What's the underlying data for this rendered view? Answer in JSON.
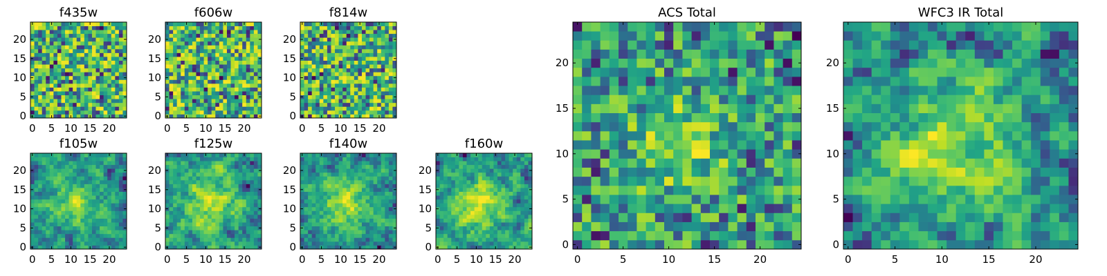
{
  "chart_data": [
    {
      "type": "heatmap",
      "title": "f435w",
      "x_ticks": [
        0,
        5,
        10,
        15,
        20
      ],
      "y_ticks": [
        0,
        5,
        10,
        15,
        20
      ],
      "xlim": [
        -0.5,
        24.5
      ],
      "ylim": [
        -0.5,
        24.5
      ],
      "grid_size": 25,
      "colormap": "viridis",
      "seed": 11,
      "texture": "fine-noise"
    },
    {
      "type": "heatmap",
      "title": "f606w",
      "x_ticks": [
        0,
        5,
        10,
        15,
        20
      ],
      "y_ticks": [
        0,
        5,
        10,
        15,
        20
      ],
      "xlim": [
        -0.5,
        24.5
      ],
      "ylim": [
        -0.5,
        24.5
      ],
      "grid_size": 25,
      "colormap": "viridis",
      "seed": 23,
      "texture": "fine-noise"
    },
    {
      "type": "heatmap",
      "title": "f814w",
      "x_ticks": [
        0,
        5,
        10,
        15,
        20
      ],
      "y_ticks": [
        0,
        5,
        10,
        15,
        20
      ],
      "xlim": [
        -0.5,
        24.5
      ],
      "ylim": [
        -0.5,
        24.5
      ],
      "grid_size": 25,
      "colormap": "viridis",
      "seed": 37,
      "texture": "fine-noise"
    },
    {
      "type": "heatmap",
      "title": "f105w",
      "x_ticks": [
        0,
        5,
        10,
        15,
        20
      ],
      "y_ticks": [
        0,
        5,
        10,
        15,
        20
      ],
      "xlim": [
        -0.5,
        24.5
      ],
      "ylim": [
        -0.5,
        24.5
      ],
      "grid_size": 25,
      "colormap": "viridis",
      "seed": 41,
      "texture": "smooth-blob"
    },
    {
      "type": "heatmap",
      "title": "f125w",
      "x_ticks": [
        0,
        5,
        10,
        15,
        20
      ],
      "y_ticks": [
        0,
        5,
        10,
        15,
        20
      ],
      "xlim": [
        -0.5,
        24.5
      ],
      "ylim": [
        -0.5,
        24.5
      ],
      "grid_size": 25,
      "colormap": "viridis",
      "seed": 53,
      "texture": "smooth-blob"
    },
    {
      "type": "heatmap",
      "title": "f140w",
      "x_ticks": [
        0,
        5,
        10,
        15,
        20
      ],
      "y_ticks": [
        0,
        5,
        10,
        15,
        20
      ],
      "xlim": [
        -0.5,
        24.5
      ],
      "ylim": [
        -0.5,
        24.5
      ],
      "grid_size": 25,
      "colormap": "viridis",
      "seed": 67,
      "texture": "smooth-blob"
    },
    {
      "type": "heatmap",
      "title": "f160w",
      "x_ticks": [
        0,
        5,
        10,
        15,
        20
      ],
      "y_ticks": [
        0,
        5,
        10,
        15,
        20
      ],
      "xlim": [
        -0.5,
        24.5
      ],
      "ylim": [
        -0.5,
        24.5
      ],
      "grid_size": 25,
      "colormap": "viridis",
      "seed": 79,
      "texture": "smooth-blob"
    },
    {
      "type": "heatmap",
      "title": "ACS Total",
      "x_ticks": [
        0,
        5,
        10,
        15,
        20
      ],
      "y_ticks": [
        0,
        5,
        10,
        15,
        20
      ],
      "xlim": [
        -0.5,
        24.5
      ],
      "ylim": [
        -0.5,
        24.5
      ],
      "grid_size": 25,
      "colormap": "viridis",
      "seed": 83,
      "texture": "coarse-noise"
    },
    {
      "type": "heatmap",
      "title": "WFC3 IR Total",
      "x_ticks": [
        0,
        5,
        10,
        15,
        20
      ],
      "y_ticks": [
        0,
        5,
        10,
        15,
        20
      ],
      "xlim": [
        -0.5,
        24.5
      ],
      "ylim": [
        -0.5,
        24.5
      ],
      "grid_size": 25,
      "colormap": "viridis",
      "seed": 97,
      "texture": "smooth-blob"
    }
  ]
}
